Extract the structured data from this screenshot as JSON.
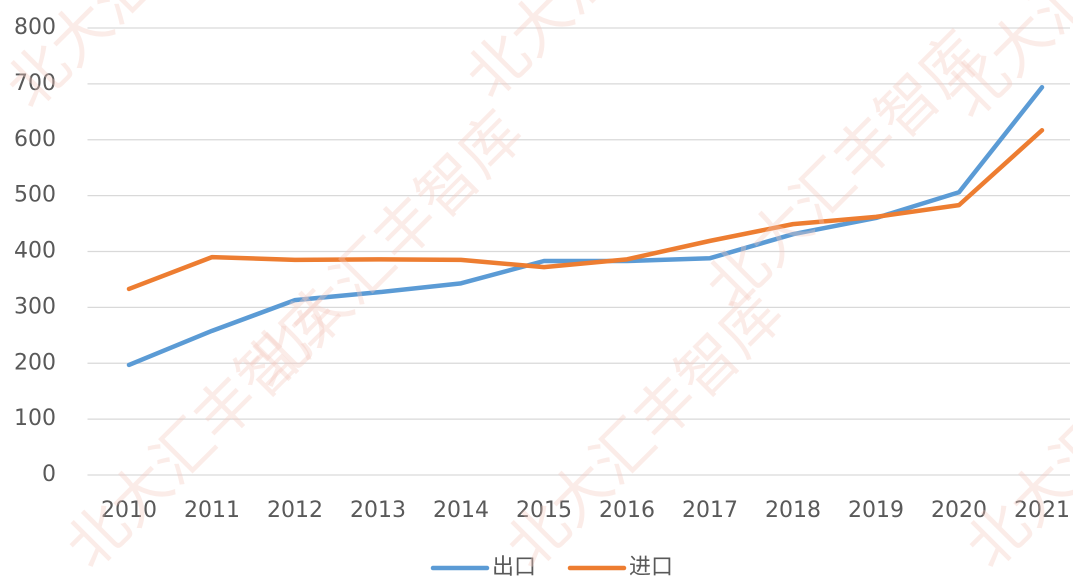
{
  "chart_data": {
    "type": "line",
    "watermark": "北大汇丰智库",
    "categories": [
      "2010",
      "2011",
      "2012",
      "2013",
      "2014",
      "2015",
      "2016",
      "2017",
      "2018",
      "2019",
      "2020",
      "2021"
    ],
    "series": [
      {
        "name": "出口",
        "color": "#5b9bd5",
        "values": [
          197,
          258,
          313,
          327,
          343,
          383,
          383,
          388,
          431,
          460,
          506,
          694
        ]
      },
      {
        "name": "进口",
        "color": "#ed7d31",
        "values": [
          333,
          390,
          385,
          386,
          385,
          372,
          386,
          419,
          449,
          462,
          483,
          617
        ]
      }
    ],
    "ylim": [
      0,
      800
    ],
    "yticks": [
      0,
      100,
      200,
      300,
      400,
      500,
      600,
      700,
      800
    ],
    "grid": true
  }
}
